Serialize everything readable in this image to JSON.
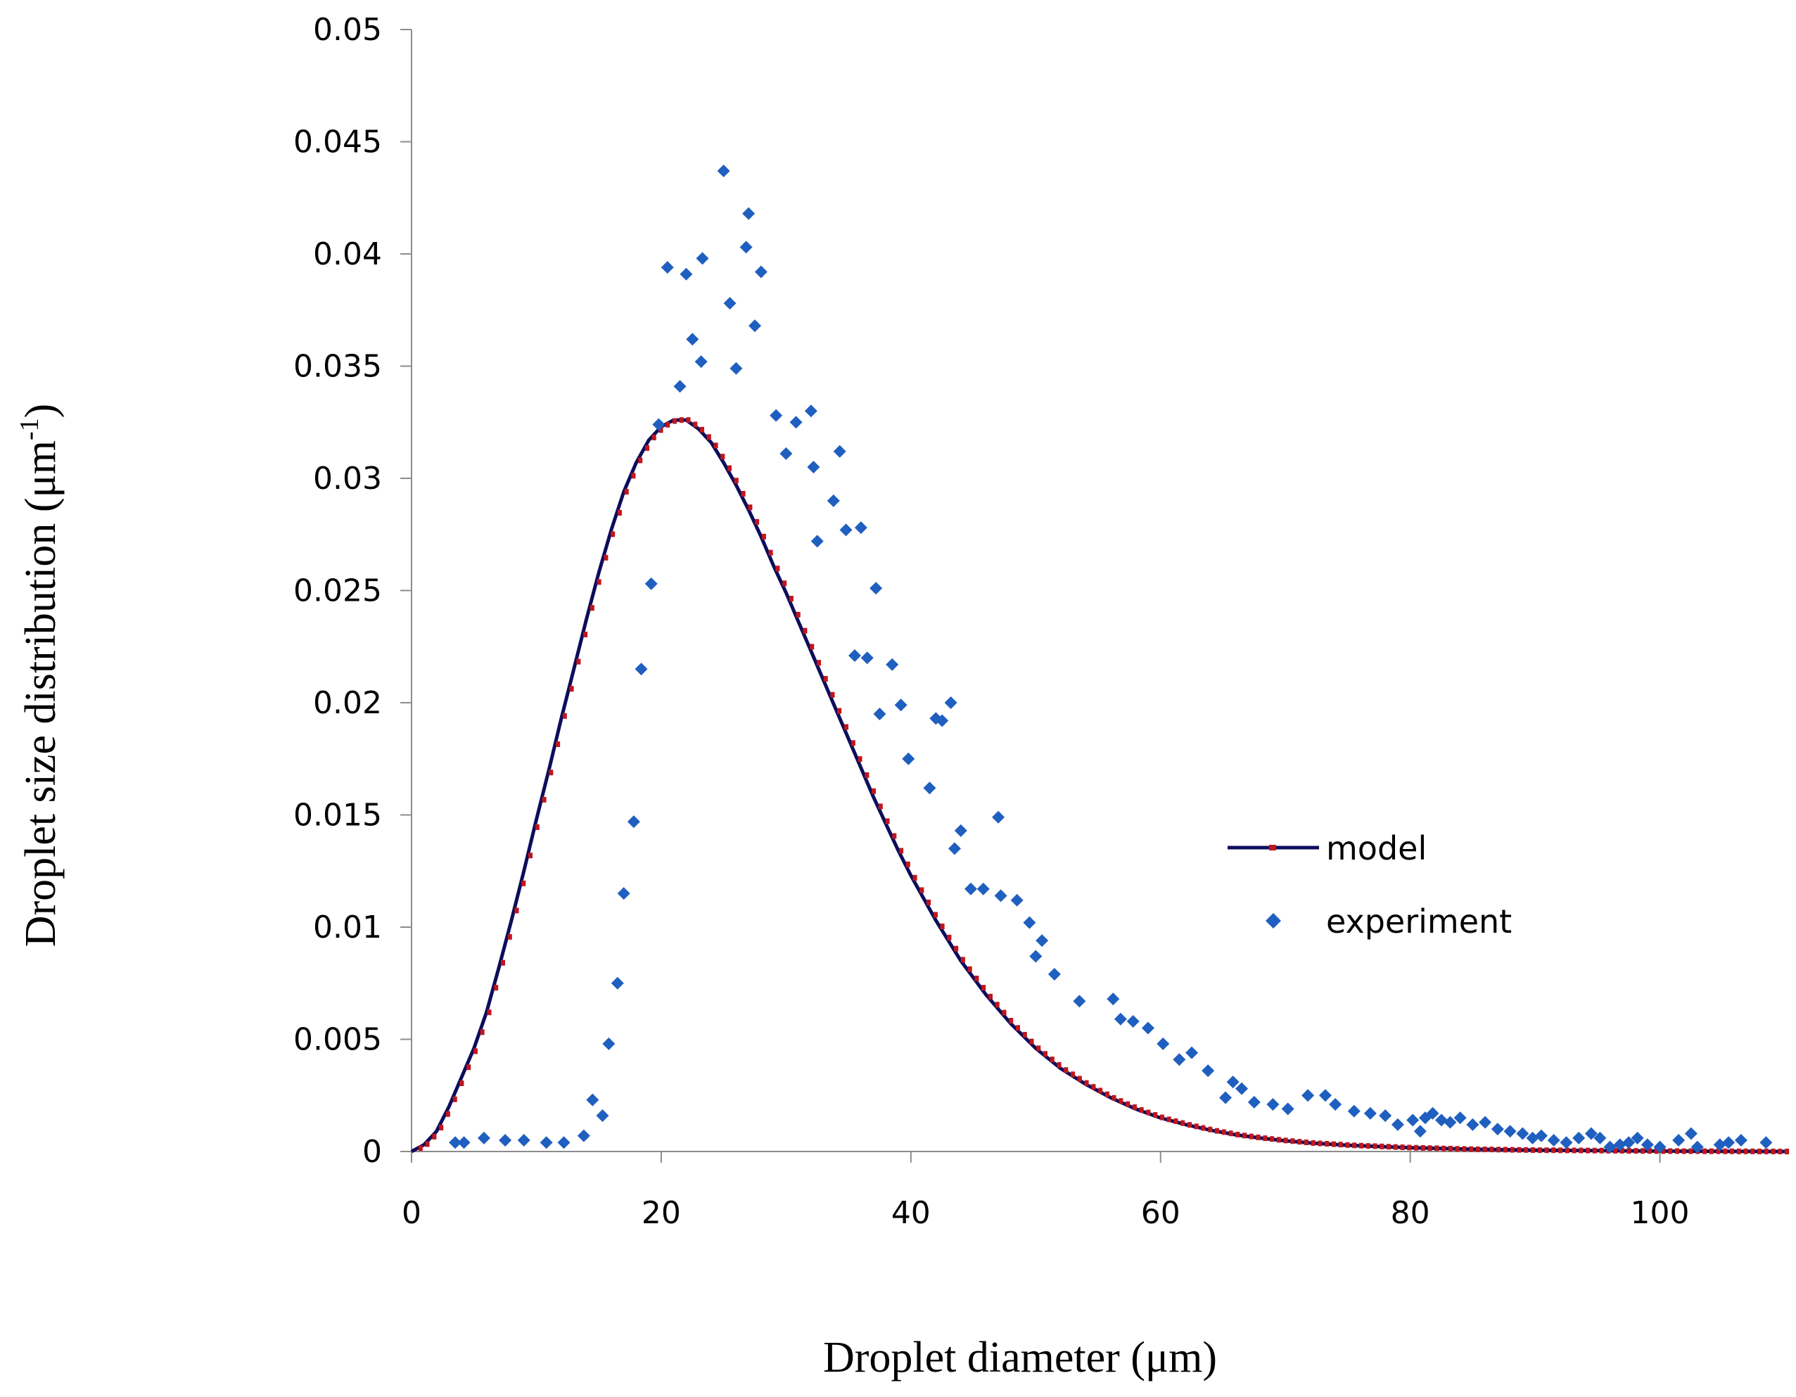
{
  "chart_data": {
    "type": "scatter",
    "xlabel": "Droplet diameter (μm)",
    "ylabel": {
      "main": "Droplet size distribution (μm",
      "superscript": "-1",
      "close": ")"
    },
    "xlim": [
      0,
      110
    ],
    "ylim": [
      0,
      0.05
    ],
    "x_ticks": [
      0,
      20,
      40,
      60,
      80,
      100
    ],
    "y_ticks": [
      0,
      0.005,
      0.01,
      0.015,
      0.02,
      0.025,
      0.03,
      0.035,
      0.04,
      0.045,
      0.05
    ],
    "x_tick_labels": [
      "0",
      "20",
      "40",
      "60",
      "80",
      "100"
    ],
    "y_tick_labels": [
      "0",
      "0.005",
      "0.01",
      "0.015",
      "0.02",
      "0.025",
      "0.03",
      "0.035",
      "0.04",
      "0.045",
      "0.05"
    ],
    "grid": false,
    "legend_position": "right",
    "series": [
      {
        "name": "model",
        "kind": "line",
        "color": "#0d0d5c",
        "marker_color": "#c0161c",
        "points": [
          [
            0,
            0
          ],
          [
            1,
            0.0003
          ],
          [
            2,
            0.0009
          ],
          [
            3,
            0.002
          ],
          [
            4,
            0.0033
          ],
          [
            5,
            0.0046
          ],
          [
            6,
            0.0062
          ],
          [
            7,
            0.0082
          ],
          [
            8,
            0.0103
          ],
          [
            9,
            0.0125
          ],
          [
            10,
            0.0148
          ],
          [
            11,
            0.017
          ],
          [
            12,
            0.0193
          ],
          [
            13,
            0.0215
          ],
          [
            14,
            0.0237
          ],
          [
            15,
            0.0258
          ],
          [
            16,
            0.0277
          ],
          [
            17,
            0.0294
          ],
          [
            18,
            0.0307
          ],
          [
            19,
            0.0317
          ],
          [
            20,
            0.0323
          ],
          [
            21,
            0.0326
          ],
          [
            22,
            0.0326
          ],
          [
            23,
            0.0322
          ],
          [
            24,
            0.0316
          ],
          [
            25,
            0.0307
          ],
          [
            26,
            0.0297
          ],
          [
            27,
            0.0286
          ],
          [
            28,
            0.0274
          ],
          [
            29,
            0.0261
          ],
          [
            30,
            0.0249
          ],
          [
            31,
            0.0236
          ],
          [
            32,
            0.0223
          ],
          [
            33,
            0.021
          ],
          [
            34,
            0.0197
          ],
          [
            35,
            0.0184
          ],
          [
            36,
            0.0171
          ],
          [
            37,
            0.0158
          ],
          [
            38,
            0.0146
          ],
          [
            39,
            0.0134
          ],
          [
            40,
            0.0123
          ],
          [
            42,
            0.0103
          ],
          [
            44,
            0.0085
          ],
          [
            46,
            0.007
          ],
          [
            48,
            0.0057
          ],
          [
            50,
            0.0046
          ],
          [
            52,
            0.0037
          ],
          [
            54,
            0.003
          ],
          [
            56,
            0.0024
          ],
          [
            58,
            0.0019
          ],
          [
            60,
            0.0015
          ],
          [
            62,
            0.0012
          ],
          [
            64,
            0.00095
          ],
          [
            66,
            0.00075
          ],
          [
            68,
            0.0006
          ],
          [
            70,
            0.00048
          ],
          [
            72,
            0.00038
          ],
          [
            75,
            0.00028
          ],
          [
            80,
            0.00017
          ],
          [
            85,
            0.0001
          ],
          [
            90,
            6e-05
          ],
          [
            95,
            4e-05
          ],
          [
            100,
            2e-05
          ],
          [
            110,
            0
          ]
        ]
      },
      {
        "name": "experiment",
        "kind": "scatter",
        "color": "#1f5fbf",
        "points": [
          [
            3.5,
            0.0004
          ],
          [
            4.2,
            0.0004
          ],
          [
            5.8,
            0.0006
          ],
          [
            7.5,
            0.0005
          ],
          [
            9.0,
            0.0005
          ],
          [
            10.8,
            0.0004
          ],
          [
            12.2,
            0.0004
          ],
          [
            13.8,
            0.0007
          ],
          [
            14.5,
            0.0023
          ],
          [
            15.3,
            0.0016
          ],
          [
            15.8,
            0.0048
          ],
          [
            16.5,
            0.0075
          ],
          [
            17.0,
            0.0115
          ],
          [
            17.8,
            0.0147
          ],
          [
            18.4,
            0.0215
          ],
          [
            19.2,
            0.0253
          ],
          [
            19.8,
            0.0324
          ],
          [
            20.5,
            0.0394
          ],
          [
            21.5,
            0.0341
          ],
          [
            22.0,
            0.0391
          ],
          [
            22.5,
            0.0362
          ],
          [
            23.2,
            0.0352
          ],
          [
            23.3,
            0.0398
          ],
          [
            25.0,
            0.0437
          ],
          [
            25.5,
            0.0378
          ],
          [
            26.0,
            0.0349
          ],
          [
            26.8,
            0.0403
          ],
          [
            27.0,
            0.0418
          ],
          [
            27.5,
            0.0368
          ],
          [
            28.0,
            0.0392
          ],
          [
            29.2,
            0.0328
          ],
          [
            30.0,
            0.0311
          ],
          [
            30.8,
            0.0325
          ],
          [
            32.0,
            0.033
          ],
          [
            32.2,
            0.0305
          ],
          [
            32.5,
            0.0272
          ],
          [
            33.8,
            0.029
          ],
          [
            34.3,
            0.0312
          ],
          [
            34.8,
            0.0277
          ],
          [
            35.5,
            0.0221
          ],
          [
            36.0,
            0.0278
          ],
          [
            36.5,
            0.022
          ],
          [
            37.2,
            0.0251
          ],
          [
            37.5,
            0.0195
          ],
          [
            38.5,
            0.0217
          ],
          [
            39.2,
            0.0199
          ],
          [
            39.8,
            0.0175
          ],
          [
            41.5,
            0.0162
          ],
          [
            42.0,
            0.0193
          ],
          [
            42.5,
            0.0192
          ],
          [
            43.2,
            0.02
          ],
          [
            43.5,
            0.0135
          ],
          [
            44.0,
            0.0143
          ],
          [
            44.8,
            0.0117
          ],
          [
            45.8,
            0.0117
          ],
          [
            47.0,
            0.0149
          ],
          [
            47.2,
            0.0114
          ],
          [
            48.5,
            0.0112
          ],
          [
            49.5,
            0.0102
          ],
          [
            50.0,
            0.0087
          ],
          [
            50.5,
            0.0094
          ],
          [
            51.5,
            0.0079
          ],
          [
            53.5,
            0.0067
          ],
          [
            56.2,
            0.0068
          ],
          [
            56.8,
            0.0059
          ],
          [
            57.8,
            0.0058
          ],
          [
            59.0,
            0.0055
          ],
          [
            60.2,
            0.0048
          ],
          [
            61.5,
            0.0041
          ],
          [
            62.5,
            0.0044
          ],
          [
            63.8,
            0.0036
          ],
          [
            65.2,
            0.0024
          ],
          [
            65.8,
            0.0031
          ],
          [
            66.5,
            0.0028
          ],
          [
            67.5,
            0.0022
          ],
          [
            69.0,
            0.0021
          ],
          [
            70.2,
            0.0019
          ],
          [
            71.8,
            0.0025
          ],
          [
            73.2,
            0.0025
          ],
          [
            74.0,
            0.0021
          ],
          [
            75.5,
            0.0018
          ],
          [
            76.8,
            0.0017
          ],
          [
            78.0,
            0.0016
          ],
          [
            79.0,
            0.0012
          ],
          [
            80.2,
            0.0014
          ],
          [
            80.8,
            0.0009
          ],
          [
            81.2,
            0.0015
          ],
          [
            81.8,
            0.0017
          ],
          [
            82.5,
            0.0014
          ],
          [
            83.2,
            0.0013
          ],
          [
            84.0,
            0.0015
          ],
          [
            85.0,
            0.0012
          ],
          [
            86.0,
            0.0013
          ],
          [
            87.0,
            0.001
          ],
          [
            88.0,
            0.0009
          ],
          [
            89.0,
            0.0008
          ],
          [
            89.8,
            0.0006
          ],
          [
            90.5,
            0.0007
          ],
          [
            91.5,
            0.0005
          ],
          [
            92.5,
            0.0004
          ],
          [
            93.5,
            0.0006
          ],
          [
            94.5,
            0.0008
          ],
          [
            95.2,
            0.0006
          ],
          [
            96.0,
            0.0002
          ],
          [
            96.8,
            0.0003
          ],
          [
            97.5,
            0.0004
          ],
          [
            98.2,
            0.0006
          ],
          [
            99.0,
            0.0003
          ],
          [
            100.0,
            0.0002
          ],
          [
            101.5,
            0.0005
          ],
          [
            102.5,
            0.0008
          ],
          [
            103.0,
            0.0002
          ],
          [
            104.8,
            0.0003
          ],
          [
            105.5,
            0.0004
          ],
          [
            106.5,
            0.0005
          ],
          [
            108.5,
            0.0004
          ]
        ]
      }
    ]
  }
}
